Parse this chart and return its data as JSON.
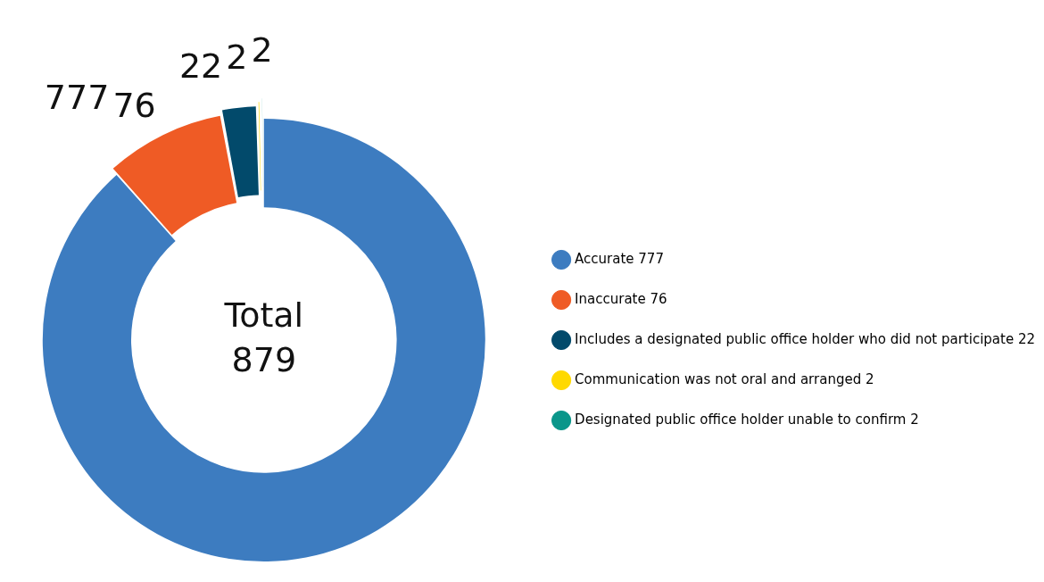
{
  "chart_data": {
    "type": "donut",
    "categories": [
      "Accurate 777",
      "Inaccurate 76",
      "Includes a designated public office holder who did not participate 22",
      "Communication was not oral and arranged 2",
      "Designated public office holder unable to confirm 2"
    ],
    "values": [
      777,
      76,
      22,
      2,
      2
    ],
    "colors": [
      "#3d7cc0",
      "#ef5b25",
      "#024a6b",
      "#ffd900",
      "#0a968a"
    ],
    "data_labels": true,
    "legend": "right",
    "annotations": [
      "Total 879"
    ]
  }
}
